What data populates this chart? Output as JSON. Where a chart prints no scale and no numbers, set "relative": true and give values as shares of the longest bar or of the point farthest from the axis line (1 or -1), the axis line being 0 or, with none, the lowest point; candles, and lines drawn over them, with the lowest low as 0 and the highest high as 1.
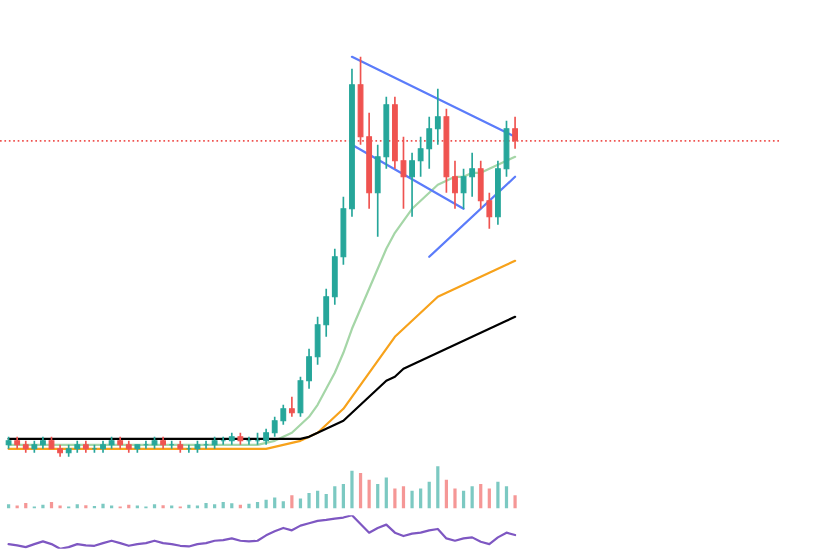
{
  "chart_data": [
    {
      "type": "candlestick",
      "relative": true,
      "categories": [
        null,
        null,
        null,
        null,
        null,
        null,
        null,
        null,
        null,
        null,
        null,
        null,
        null,
        null,
        null,
        null,
        null,
        null,
        null,
        null,
        null,
        null,
        null,
        null,
        null,
        null,
        null,
        null,
        null,
        null,
        null,
        null,
        null,
        null,
        null,
        null,
        null,
        null,
        null,
        null,
        null,
        null,
        null,
        null,
        null,
        null,
        null,
        null,
        null,
        null,
        null,
        null,
        null,
        null,
        null,
        null,
        null,
        null,
        null,
        null
      ],
      "ohlc": [
        [
          0.03,
          0.05,
          0.02,
          0.04
        ],
        [
          0.04,
          0.05,
          0.02,
          0.03
        ],
        [
          0.03,
          0.04,
          0.01,
          0.02
        ],
        [
          0.02,
          0.04,
          0.01,
          0.03
        ],
        [
          0.03,
          0.05,
          0.02,
          0.04
        ],
        [
          0.04,
          0.05,
          0.02,
          0.02
        ],
        [
          0.02,
          0.03,
          0.0,
          0.01
        ],
        [
          0.01,
          0.03,
          0.0,
          0.02
        ],
        [
          0.02,
          0.04,
          0.01,
          0.03
        ],
        [
          0.03,
          0.04,
          0.01,
          0.02
        ],
        [
          0.02,
          0.03,
          0.01,
          0.02
        ],
        [
          0.02,
          0.04,
          0.01,
          0.03
        ],
        [
          0.03,
          0.05,
          0.02,
          0.04
        ],
        [
          0.04,
          0.05,
          0.02,
          0.03
        ],
        [
          0.03,
          0.04,
          0.01,
          0.02
        ],
        [
          0.02,
          0.03,
          0.01,
          0.03
        ],
        [
          0.03,
          0.04,
          0.02,
          0.03
        ],
        [
          0.03,
          0.05,
          0.02,
          0.04
        ],
        [
          0.04,
          0.05,
          0.02,
          0.03
        ],
        [
          0.03,
          0.04,
          0.02,
          0.03
        ],
        [
          0.03,
          0.04,
          0.01,
          0.02
        ],
        [
          0.02,
          0.03,
          0.01,
          0.02
        ],
        [
          0.02,
          0.04,
          0.01,
          0.03
        ],
        [
          0.03,
          0.04,
          0.02,
          0.03
        ],
        [
          0.03,
          0.05,
          0.02,
          0.04
        ],
        [
          0.04,
          0.05,
          0.03,
          0.04
        ],
        [
          0.04,
          0.06,
          0.03,
          0.05
        ],
        [
          0.05,
          0.06,
          0.03,
          0.04
        ],
        [
          0.04,
          0.05,
          0.03,
          0.04
        ],
        [
          0.04,
          0.06,
          0.03,
          0.04
        ],
        [
          0.04,
          0.07,
          0.03,
          0.06
        ],
        [
          0.06,
          0.1,
          0.05,
          0.09
        ],
        [
          0.09,
          0.13,
          0.08,
          0.12
        ],
        [
          0.12,
          0.15,
          0.1,
          0.11
        ],
        [
          0.11,
          0.2,
          0.1,
          0.19
        ],
        [
          0.19,
          0.27,
          0.17,
          0.25
        ],
        [
          0.25,
          0.35,
          0.23,
          0.33
        ],
        [
          0.33,
          0.42,
          0.3,
          0.4
        ],
        [
          0.4,
          0.52,
          0.38,
          0.5
        ],
        [
          0.5,
          0.65,
          0.48,
          0.62
        ],
        [
          0.62,
          0.97,
          0.6,
          0.93
        ],
        [
          0.93,
          1.0,
          0.78,
          0.8
        ],
        [
          0.8,
          0.86,
          0.62,
          0.66
        ],
        [
          0.66,
          0.78,
          0.55,
          0.75
        ],
        [
          0.75,
          0.9,
          0.72,
          0.88
        ],
        [
          0.88,
          0.9,
          0.72,
          0.74
        ],
        [
          0.74,
          0.8,
          0.62,
          0.7
        ],
        [
          0.7,
          0.76,
          0.6,
          0.74
        ],
        [
          0.74,
          0.8,
          0.7,
          0.77
        ],
        [
          0.77,
          0.85,
          0.72,
          0.82
        ],
        [
          0.82,
          0.92,
          0.78,
          0.85
        ],
        [
          0.85,
          0.87,
          0.66,
          0.7
        ],
        [
          0.7,
          0.74,
          0.62,
          0.66
        ],
        [
          0.66,
          0.72,
          0.62,
          0.7
        ],
        [
          0.7,
          0.76,
          0.65,
          0.72
        ],
        [
          0.72,
          0.74,
          0.62,
          0.64
        ],
        [
          0.64,
          0.66,
          0.57,
          0.6
        ],
        [
          0.6,
          0.74,
          0.58,
          0.72
        ],
        [
          0.72,
          0.84,
          0.7,
          0.82
        ],
        [
          0.82,
          0.85,
          0.77,
          0.79
        ]
      ],
      "colors": [
        "#26a69a",
        "#ef5350",
        "#ef5350",
        "#26a69a",
        "#26a69a",
        "#ef5350",
        "#ef5350",
        "#26a69a",
        "#26a69a",
        "#ef5350",
        "#26a69a",
        "#26a69a",
        "#26a69a",
        "#ef5350",
        "#ef5350",
        "#26a69a",
        "#26a69a",
        "#26a69a",
        "#ef5350",
        "#26a69a",
        "#ef5350",
        "#26a69a",
        "#26a69a",
        "#26a69a",
        "#26a69a",
        "#26a69a",
        "#26a69a",
        "#ef5350",
        "#26a69a",
        "#26a69a",
        "#26a69a",
        "#26a69a",
        "#26a69a",
        "#ef5350",
        "#26a69a",
        "#26a69a",
        "#26a69a",
        "#26a69a",
        "#26a69a",
        "#26a69a",
        "#26a69a",
        "#ef5350",
        "#ef5350",
        "#26a69a",
        "#26a69a",
        "#ef5350",
        "#ef5350",
        "#26a69a",
        "#26a69a",
        "#26a69a",
        "#26a69a",
        "#ef5350",
        "#ef5350",
        "#26a69a",
        "#26a69a",
        "#ef5350",
        "#ef5350",
        "#26a69a",
        "#26a69a",
        "#ef5350"
      ],
      "series": [
        {
          "type": "line",
          "color": "#a5d6a7",
          "values": [
            0.03,
            0.03,
            0.03,
            0.03,
            0.03,
            0.03,
            0.03,
            0.03,
            0.03,
            0.03,
            0.03,
            0.03,
            0.03,
            0.03,
            0.03,
            0.03,
            0.03,
            0.03,
            0.03,
            0.03,
            0.03,
            0.03,
            0.03,
            0.03,
            0.03,
            0.03,
            0.03,
            0.03,
            0.03,
            0.03,
            0.035,
            0.04,
            0.05,
            0.06,
            0.08,
            0.1,
            0.13,
            0.17,
            0.21,
            0.26,
            0.32,
            0.37,
            0.42,
            0.47,
            0.52,
            0.56,
            0.59,
            0.62,
            0.64,
            0.66,
            0.68,
            0.69,
            0.7,
            0.7,
            0.71,
            0.71,
            0.72,
            0.73,
            0.74,
            0.75
          ]
        },
        {
          "type": "line",
          "color": "#f7a21b",
          "values": [
            0.02,
            0.02,
            0.02,
            0.02,
            0.02,
            0.02,
            0.02,
            0.02,
            0.02,
            0.02,
            0.02,
            0.02,
            0.02,
            0.02,
            0.02,
            0.02,
            0.02,
            0.02,
            0.02,
            0.02,
            0.02,
            0.02,
            0.02,
            0.02,
            0.02,
            0.02,
            0.02,
            0.02,
            0.02,
            0.02,
            0.02,
            0.025,
            0.03,
            0.035,
            0.04,
            0.05,
            0.06,
            0.08,
            0.1,
            0.12,
            0.15,
            0.18,
            0.21,
            0.24,
            0.27,
            0.3,
            0.32,
            0.34,
            0.36,
            0.38,
            0.4,
            0.41,
            0.42,
            0.43,
            0.44,
            0.45,
            0.46,
            0.47,
            0.48,
            0.49
          ]
        },
        {
          "type": "line",
          "color": "#000000",
          "values": [
            0.045,
            0.045,
            0.045,
            0.045,
            0.045,
            0.045,
            0.045,
            0.045,
            0.045,
            0.045,
            0.045,
            0.045,
            0.045,
            0.045,
            0.045,
            0.045,
            0.045,
            0.045,
            0.045,
            0.045,
            0.045,
            0.045,
            0.045,
            0.045,
            0.045,
            0.045,
            0.045,
            0.045,
            0.045,
            0.045,
            0.045,
            0.045,
            0.045,
            0.045,
            0.045,
            0.05,
            0.06,
            0.07,
            0.08,
            0.09,
            0.11,
            0.13,
            0.15,
            0.17,
            0.19,
            0.2,
            0.22,
            0.23,
            0.24,
            0.25,
            0.26,
            0.27,
            0.28,
            0.29,
            0.3,
            0.31,
            0.32,
            0.33,
            0.34,
            0.35
          ]
        },
        {
          "type": "line",
          "color": "#5b7cfa",
          "values": [
            null,
            null,
            null,
            null,
            null,
            null,
            null,
            null,
            null,
            null,
            null,
            null,
            null,
            null,
            null,
            null,
            null,
            null,
            null,
            null,
            null,
            null,
            null,
            null,
            null,
            null,
            null,
            null,
            null,
            null,
            null,
            null,
            null,
            null,
            null,
            null,
            null,
            null,
            null,
            null,
            1.0,
            null,
            null,
            null,
            null,
            null,
            null,
            null,
            null,
            null,
            null,
            null,
            null,
            null,
            null,
            null,
            null,
            null,
            null,
            0.8
          ]
        },
        {
          "type": "line",
          "color": "#5b7cfa",
          "values": [
            null,
            null,
            null,
            null,
            null,
            null,
            null,
            null,
            null,
            null,
            null,
            null,
            null,
            null,
            null,
            null,
            null,
            null,
            null,
            null,
            null,
            null,
            null,
            null,
            null,
            null,
            null,
            null,
            null,
            null,
            null,
            null,
            null,
            null,
            null,
            null,
            null,
            null,
            null,
            null,
            0.78,
            null,
            null,
            null,
            null,
            null,
            null,
            null,
            null,
            null,
            null,
            null,
            null,
            0.62,
            null,
            null,
            null,
            null,
            null,
            null
          ]
        },
        {
          "type": "line",
          "color": "#5b7cfa",
          "values": [
            null,
            null,
            null,
            null,
            null,
            null,
            null,
            null,
            null,
            null,
            null,
            null,
            null,
            null,
            null,
            null,
            null,
            null,
            null,
            null,
            null,
            null,
            null,
            null,
            null,
            null,
            null,
            null,
            null,
            null,
            null,
            null,
            null,
            null,
            null,
            null,
            null,
            null,
            null,
            null,
            null,
            null,
            null,
            null,
            null,
            null,
            null,
            null,
            null,
            0.5,
            null,
            null,
            null,
            null,
            null,
            null,
            null,
            null,
            null,
            0.7
          ]
        }
      ],
      "ref_lines": [
        {
          "axis": "y",
          "value": 0.79,
          "color": "#ef5350",
          "line_style": "dotted"
        }
      ]
    },
    {
      "type": "bar",
      "relative": true,
      "categories": [
        null,
        null,
        null,
        null,
        null,
        null,
        null,
        null,
        null,
        null,
        null,
        null,
        null,
        null,
        null,
        null,
        null,
        null,
        null,
        null,
        null,
        null,
        null,
        null,
        null,
        null,
        null,
        null,
        null,
        null,
        null,
        null,
        null,
        null,
        null,
        null,
        null,
        null,
        null,
        null,
        null,
        null,
        null,
        null,
        null,
        null,
        null,
        null,
        null,
        null,
        null,
        null,
        null,
        null,
        null,
        null,
        null,
        null,
        null,
        null
      ],
      "values": [
        0.15,
        0.12,
        0.18,
        0.1,
        0.14,
        0.2,
        0.12,
        0.1,
        0.15,
        0.13,
        0.11,
        0.16,
        0.12,
        0.1,
        0.14,
        0.12,
        0.1,
        0.15,
        0.13,
        0.12,
        0.1,
        0.14,
        0.12,
        0.18,
        0.15,
        0.2,
        0.17,
        0.14,
        0.16,
        0.2,
        0.25,
        0.3,
        0.22,
        0.35,
        0.28,
        0.4,
        0.45,
        0.38,
        0.55,
        0.6,
        0.9,
        0.85,
        0.7,
        0.6,
        0.75,
        0.5,
        0.55,
        0.45,
        0.5,
        0.65,
        1.0,
        0.7,
        0.5,
        0.45,
        0.55,
        0.6,
        0.5,
        0.65,
        0.55,
        0.35
      ],
      "colors": [
        "#26a69a",
        "#ef5350",
        "#ef5350",
        "#26a69a",
        "#26a69a",
        "#ef5350",
        "#ef5350",
        "#26a69a",
        "#26a69a",
        "#ef5350",
        "#26a69a",
        "#26a69a",
        "#26a69a",
        "#ef5350",
        "#ef5350",
        "#26a69a",
        "#26a69a",
        "#26a69a",
        "#ef5350",
        "#26a69a",
        "#ef5350",
        "#26a69a",
        "#26a69a",
        "#26a69a",
        "#26a69a",
        "#26a69a",
        "#26a69a",
        "#ef5350",
        "#26a69a",
        "#26a69a",
        "#26a69a",
        "#26a69a",
        "#26a69a",
        "#ef5350",
        "#26a69a",
        "#26a69a",
        "#26a69a",
        "#26a69a",
        "#26a69a",
        "#26a69a",
        "#26a69a",
        "#ef5350",
        "#ef5350",
        "#26a69a",
        "#26a69a",
        "#ef5350",
        "#ef5350",
        "#26a69a",
        "#26a69a",
        "#26a69a",
        "#26a69a",
        "#ef5350",
        "#ef5350",
        "#26a69a",
        "#26a69a",
        "#ef5350",
        "#ef5350",
        "#26a69a",
        "#26a69a",
        "#ef5350"
      ]
    },
    {
      "type": "line",
      "relative": true,
      "categories": [
        null,
        null,
        null,
        null,
        null,
        null,
        null,
        null,
        null,
        null,
        null,
        null,
        null,
        null,
        null,
        null,
        null,
        null,
        null,
        null,
        null,
        null,
        null,
        null,
        null,
        null,
        null,
        null,
        null,
        null,
        null,
        null,
        null,
        null,
        null,
        null,
        null,
        null,
        null,
        null,
        null,
        null,
        null,
        null,
        null,
        null,
        null,
        null,
        null,
        null,
        null,
        null,
        null,
        null,
        null,
        null,
        null,
        null,
        null,
        null
      ],
      "series": [
        {
          "color": "#7e57c2",
          "values": [
            0.14,
            0.1,
            0.05,
            0.14,
            0.22,
            0.14,
            0,
            0.05,
            0.14,
            0.1,
            0.09,
            0.17,
            0.24,
            0.17,
            0.09,
            0.14,
            0.17,
            0.24,
            0.17,
            0.14,
            0.09,
            0.07,
            0.14,
            0.17,
            0.24,
            0.26,
            0.31,
            0.24,
            0.22,
            0.24,
            0.4,
            0.52,
            0.62,
            0.55,
            0.69,
            0.76,
            0.83,
            0.86,
            0.9,
            0.93,
            1,
            0.74,
            0.48,
            0.62,
            0.72,
            0.48,
            0.38,
            0.45,
            0.48,
            0.55,
            0.59,
            0.31,
            0.24,
            0.31,
            0.34,
            0.21,
            0.14,
            0.34,
            0.48,
            0.41
          ]
        }
      ]
    }
  ]
}
